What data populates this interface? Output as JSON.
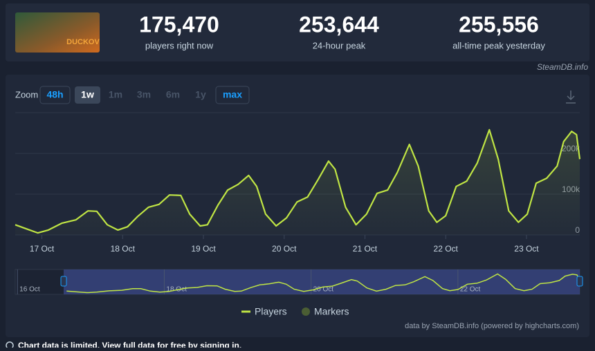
{
  "header": {
    "thumbnail_text": "DUCKOV",
    "stats": [
      {
        "value": "175,470",
        "label": "players right now"
      },
      {
        "value": "253,644",
        "label": "24-hour peak"
      },
      {
        "value": "255,556",
        "label": "all-time peak yesterday"
      }
    ]
  },
  "source": "SteamDB.info",
  "zoom": {
    "label": "Zoom",
    "options": [
      "48h",
      "1w",
      "1m",
      "3m",
      "6m",
      "1y",
      "max"
    ]
  },
  "chart_data": {
    "type": "line",
    "x": [
      16.67,
      16.82,
      16.95,
      17.08,
      17.25,
      17.42,
      17.57,
      17.68,
      17.81,
      17.94,
      18.06,
      18.19,
      18.32,
      18.45,
      18.58,
      18.72,
      18.83,
      18.96,
      19.05,
      19.18,
      19.3,
      19.43,
      19.56,
      19.66,
      19.77,
      19.9,
      20.03,
      20.16,
      20.29,
      20.42,
      20.55,
      20.63,
      20.76,
      20.89,
      21.02,
      21.15,
      21.28,
      21.4,
      21.55,
      21.66,
      21.79,
      21.89,
      22.0,
      22.13,
      22.26,
      22.39,
      22.54,
      22.65,
      22.78,
      22.9,
      23.01,
      23.12,
      23.25,
      23.38,
      23.46,
      23.56,
      23.62,
      23.66
    ],
    "series": [
      {
        "name": "Players",
        "color": "#c0e544",
        "values": [
          25000,
          14000,
          5000,
          12000,
          29000,
          37000,
          59000,
          58000,
          25000,
          12000,
          20000,
          46000,
          68000,
          75000,
          98000,
          97000,
          51000,
          22000,
          25000,
          73000,
          110000,
          124000,
          146000,
          119000,
          51000,
          22000,
          42000,
          81000,
          93000,
          136000,
          181000,
          161000,
          68000,
          25000,
          51000,
          102000,
          110000,
          153000,
          222000,
          169000,
          59000,
          31000,
          47000,
          119000,
          132000,
          176000,
          258000,
          186000,
          59000,
          31000,
          51000,
          127000,
          139000,
          169000,
          229000,
          254000,
          246000,
          186000
        ]
      },
      {
        "name": "Markers",
        "color": "#4b5e34"
      }
    ],
    "xlim": [
      16.67,
      23.66
    ],
    "xticks": [
      {
        "value": 17,
        "label": "17 Oct"
      },
      {
        "value": 18,
        "label": "18 Oct"
      },
      {
        "value": 19,
        "label": "19 Oct"
      },
      {
        "value": 20,
        "label": "20 Oct"
      },
      {
        "value": 21,
        "label": "21 Oct"
      },
      {
        "value": 22,
        "label": "22 Oct"
      },
      {
        "value": 23,
        "label": "23 Oct"
      }
    ],
    "ylim": [
      0,
      300000
    ],
    "yticks": [
      0,
      {
        "value": 100000,
        "label": "100k"
      },
      {
        "value": 200000,
        "label": "200k"
      }
    ],
    "grid": true
  },
  "navigator": {
    "xlim": [
      15.97,
      23.66
    ],
    "selection": [
      16.63,
      23.66
    ],
    "xticks": [
      {
        "value": 16,
        "label": "16 Oct"
      },
      {
        "value": 18,
        "label": "18 Oct"
      },
      {
        "value": 20,
        "label": "20 Oct"
      },
      {
        "value": 22,
        "label": "22 Oct"
      }
    ]
  },
  "credits": "data by SteamDB.info (powered by highcharts.com)",
  "footer": "Chart data is limited. View full data for free by signing in."
}
